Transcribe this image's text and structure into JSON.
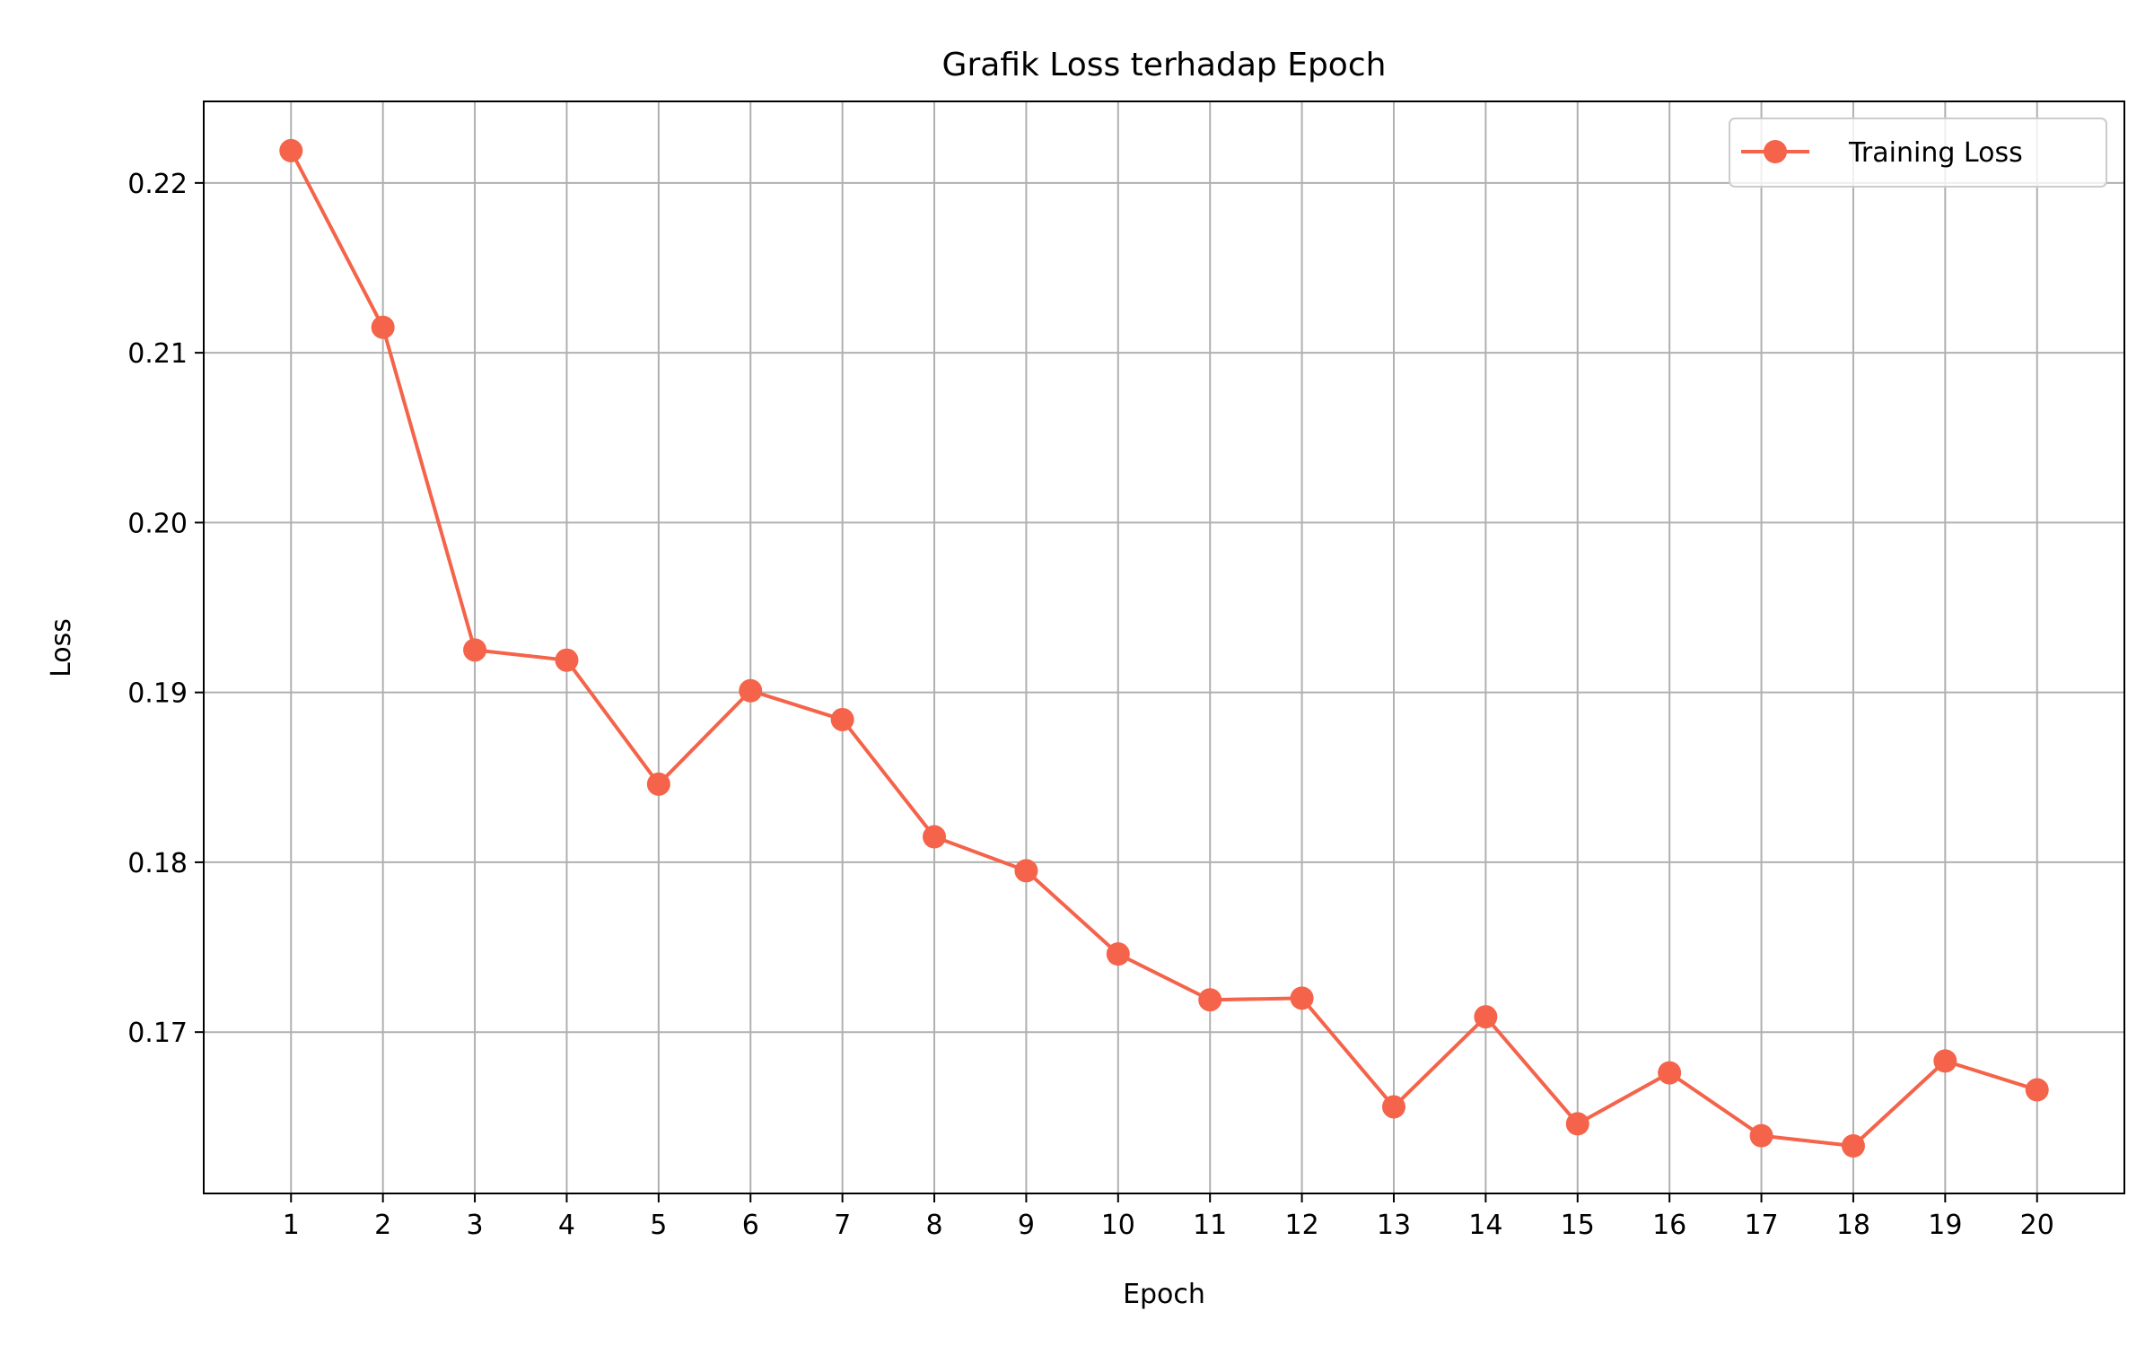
{
  "chart_data": {
    "type": "line",
    "title": "Grafik Loss terhadap Epoch",
    "xlabel": "Epoch",
    "ylabel": "Loss",
    "x": [
      1,
      2,
      3,
      4,
      5,
      6,
      7,
      8,
      9,
      10,
      11,
      12,
      13,
      14,
      15,
      16,
      17,
      18,
      19,
      20
    ],
    "xlim": [
      0.05,
      20.95
    ],
    "ylim": [
      0.1605,
      0.2248
    ],
    "yticks": [
      "0.17",
      "0.18",
      "0.19",
      "0.20",
      "0.21",
      "0.22"
    ],
    "grid": true,
    "legend_position": "upper right",
    "series": [
      {
        "name": "Training Loss",
        "color": "#f4634a",
        "marker": "circle",
        "values": [
          0.2219,
          0.2115,
          0.1925,
          0.1919,
          0.1846,
          0.1901,
          0.1884,
          0.1815,
          0.1795,
          0.1746,
          0.1719,
          0.172,
          0.1656,
          0.1709,
          0.1646,
          0.1676,
          0.1639,
          0.1633,
          0.1683,
          0.1666
        ]
      }
    ]
  }
}
